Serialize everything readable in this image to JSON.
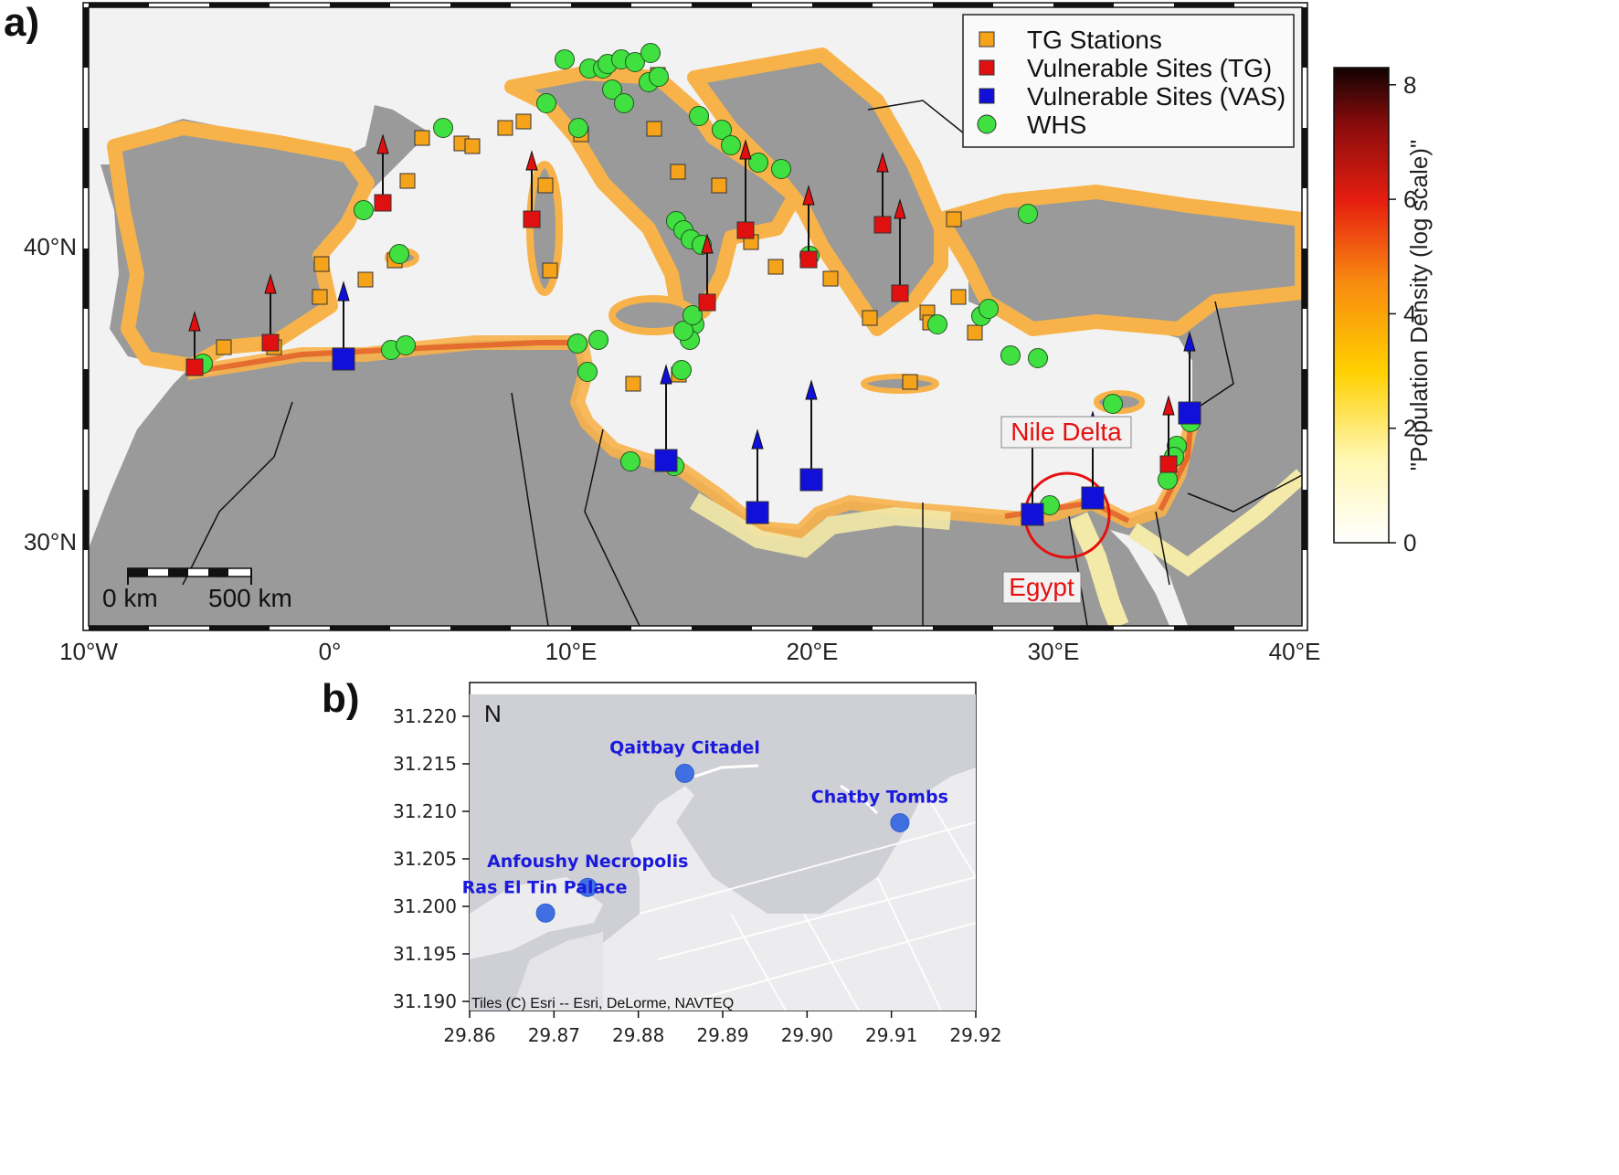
{
  "panel_a": {
    "label": "a)",
    "legend": {
      "tg": "TG Stations",
      "vtg": "Vulnerable Sites (TG)",
      "vvas": "Vulnerable Sites (VAS)",
      "whs": "WHS"
    },
    "annotations": {
      "nile_delta": "Nile Delta",
      "egypt": "Egypt"
    },
    "scalebar": {
      "left": "0 km",
      "right": "500 km"
    },
    "colorbar": {
      "title": "\"Population Density (log scale)\"",
      "ticks": [
        "0",
        "2",
        "4",
        "6",
        "8"
      ],
      "range": [
        0,
        8.3
      ]
    },
    "x_ticks": [
      "10°W",
      "0°",
      "10°E",
      "20°E",
      "30°E",
      "40°E"
    ],
    "y_ticks": [
      "30°N",
      "40°N"
    ],
    "extent": {
      "lon": [
        -10,
        40.5
      ],
      "lat": [
        27,
        45.5
      ]
    },
    "colors": {
      "tg": "#f5a31a",
      "vtg": "#e01010",
      "vvas": "#1010d8",
      "whs": "#3fe03f",
      "sea": "#f2f2f2",
      "land": "#9a9a9a"
    }
  },
  "panel_b": {
    "label": "b)",
    "north": "N",
    "attribution": "Tiles (C) Esri -- Esri, DeLorme, NAVTEQ",
    "x_ticks": [
      "29.86",
      "29.87",
      "29.88",
      "29.89",
      "29.90",
      "29.91",
      "29.92"
    ],
    "y_ticks": [
      "31.220",
      "31.215",
      "31.210",
      "31.205",
      "31.200",
      "31.195",
      "31.190"
    ],
    "sites": [
      {
        "name": "Qaitbay Citadel",
        "lon": 29.8855,
        "lat": 31.214
      },
      {
        "name": "Chatby Tombs",
        "lon": 29.911,
        "lat": 31.2088
      },
      {
        "name": "Anfoushy Necropolis",
        "lon": 29.874,
        "lat": 31.202
      },
      {
        "name": "Ras El Tin Palace",
        "lon": 29.869,
        "lat": 31.1993
      }
    ]
  }
}
